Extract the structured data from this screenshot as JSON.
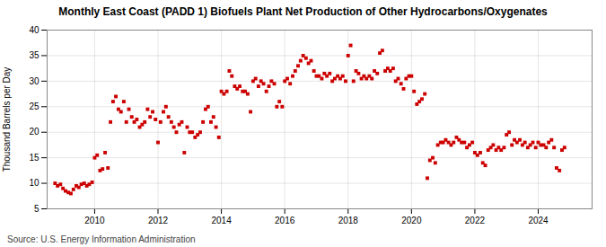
{
  "chart_data": {
    "type": "scatter",
    "title": "Monthly East Coast (PADD 1) Biofuels Plant Net Production of Other Hydrocarbons/Oxygenates",
    "ylabel": "Thousand Barrels per Day",
    "source": "Source: U.S. Energy Information Administration",
    "color": "#cc0000",
    "marker": "square",
    "grid": true,
    "xlim": [
      2008.5,
      2025.7
    ],
    "xticks": [
      2010,
      2012,
      2014,
      2016,
      2018,
      2020,
      2022,
      2024
    ],
    "ylim": [
      5,
      40
    ],
    "yticks": [
      5,
      10,
      15,
      20,
      25,
      30,
      35,
      40
    ],
    "x": [
      2008.75,
      2008.83,
      2008.92,
      2009.0,
      2009.08,
      2009.17,
      2009.25,
      2009.33,
      2009.42,
      2009.5,
      2009.58,
      2009.67,
      2009.75,
      2009.83,
      2009.92,
      2010.0,
      2010.08,
      2010.17,
      2010.25,
      2010.33,
      2010.42,
      2010.5,
      2010.58,
      2010.67,
      2010.75,
      2010.83,
      2010.92,
      2011.0,
      2011.08,
      2011.17,
      2011.25,
      2011.33,
      2011.42,
      2011.5,
      2011.58,
      2011.67,
      2011.75,
      2011.83,
      2011.92,
      2012.0,
      2012.08,
      2012.17,
      2012.25,
      2012.33,
      2012.42,
      2012.5,
      2012.58,
      2012.67,
      2012.75,
      2012.83,
      2012.92,
      2013.0,
      2013.08,
      2013.17,
      2013.25,
      2013.33,
      2013.42,
      2013.5,
      2013.58,
      2013.67,
      2013.75,
      2013.83,
      2013.92,
      2014.0,
      2014.08,
      2014.17,
      2014.25,
      2014.33,
      2014.42,
      2014.5,
      2014.58,
      2014.67,
      2014.75,
      2014.83,
      2014.92,
      2015.0,
      2015.08,
      2015.17,
      2015.25,
      2015.33,
      2015.42,
      2015.5,
      2015.58,
      2015.67,
      2015.75,
      2015.83,
      2015.92,
      2016.0,
      2016.08,
      2016.17,
      2016.25,
      2016.33,
      2016.42,
      2016.5,
      2016.58,
      2016.67,
      2016.75,
      2016.83,
      2016.92,
      2017.0,
      2017.08,
      2017.17,
      2017.25,
      2017.33,
      2017.42,
      2017.5,
      2017.58,
      2017.67,
      2017.75,
      2017.83,
      2017.92,
      2018.0,
      2018.08,
      2018.17,
      2018.25,
      2018.33,
      2018.42,
      2018.5,
      2018.58,
      2018.67,
      2018.75,
      2018.83,
      2018.92,
      2019.0,
      2019.08,
      2019.17,
      2019.25,
      2019.33,
      2019.42,
      2019.5,
      2019.58,
      2019.67,
      2019.75,
      2019.83,
      2019.92,
      2020.0,
      2020.08,
      2020.17,
      2020.25,
      2020.33,
      2020.42,
      2020.5,
      2020.58,
      2020.67,
      2020.75,
      2020.83,
      2020.92,
      2021.0,
      2021.08,
      2021.17,
      2021.25,
      2021.33,
      2021.42,
      2021.5,
      2021.58,
      2021.67,
      2021.75,
      2021.83,
      2021.92,
      2022.0,
      2022.08,
      2022.17,
      2022.25,
      2022.33,
      2022.42,
      2022.5,
      2022.58,
      2022.67,
      2022.75,
      2022.83,
      2022.92,
      2023.0,
      2023.08,
      2023.17,
      2023.25,
      2023.33,
      2023.42,
      2023.5,
      2023.58,
      2023.67,
      2023.75,
      2023.83,
      2023.92,
      2024.0,
      2024.08,
      2024.17,
      2024.25,
      2024.33,
      2024.42,
      2024.5,
      2024.58,
      2024.67,
      2024.75,
      2024.83
    ],
    "values": [
      10.0,
      9.5,
      9.8,
      9.0,
      8.5,
      8.2,
      8.0,
      8.8,
      9.5,
      9.2,
      9.8,
      10.0,
      9.5,
      9.8,
      10.2,
      15.0,
      15.5,
      12.5,
      12.8,
      16.0,
      13.0,
      22.0,
      26.0,
      27.0,
      24.5,
      24.0,
      26.0,
      22.0,
      24.5,
      23.0,
      22.0,
      22.5,
      21.0,
      21.5,
      22.0,
      24.5,
      23.0,
      24.0,
      22.5,
      18.0,
      22.0,
      24.0,
      25.0,
      23.0,
      22.0,
      21.0,
      20.0,
      21.5,
      22.0,
      16.0,
      21.0,
      20.0,
      20.0,
      19.0,
      19.5,
      20.0,
      22.0,
      24.5,
      25.0,
      22.0,
      23.0,
      21.0,
      19.0,
      28.0,
      27.5,
      28.0,
      32.0,
      31.0,
      29.0,
      28.5,
      29.0,
      28.0,
      28.0,
      27.5,
      24.0,
      30.0,
      30.5,
      29.0,
      30.0,
      29.5,
      28.0,
      29.0,
      30.0,
      29.5,
      25.0,
      26.0,
      25.0,
      30.0,
      30.5,
      29.5,
      31.0,
      32.0,
      33.0,
      34.0,
      35.0,
      34.5,
      33.5,
      34.0,
      32.0,
      31.0,
      31.0,
      30.5,
      31.5,
      31.0,
      31.5,
      30.0,
      30.5,
      31.0,
      30.5,
      31.0,
      30.0,
      35.0,
      37.0,
      30.0,
      32.0,
      31.5,
      30.5,
      31.0,
      30.5,
      31.0,
      30.5,
      32.0,
      31.5,
      35.5,
      36.0,
      32.0,
      32.5,
      32.0,
      32.5,
      30.0,
      30.5,
      29.5,
      28.5,
      30.5,
      31.0,
      31.0,
      28.0,
      25.5,
      26.0,
      26.5,
      27.5,
      11.0,
      14.5,
      15.0,
      14.0,
      17.5,
      18.0,
      18.0,
      18.5,
      18.0,
      17.5,
      18.0,
      19.0,
      18.5,
      18.0,
      18.0,
      17.0,
      17.5,
      18.0,
      16.0,
      15.5,
      16.0,
      14.0,
      13.5,
      16.5,
      17.0,
      17.5,
      16.5,
      17.0,
      16.5,
      17.0,
      19.5,
      20.0,
      17.5,
      18.5,
      18.0,
      18.5,
      17.5,
      18.0,
      17.0,
      17.5,
      18.0,
      17.0,
      18.0,
      17.5,
      17.5,
      17.0,
      18.0,
      18.5,
      17.0,
      13.0,
      12.5,
      16.5,
      17.0
    ]
  }
}
